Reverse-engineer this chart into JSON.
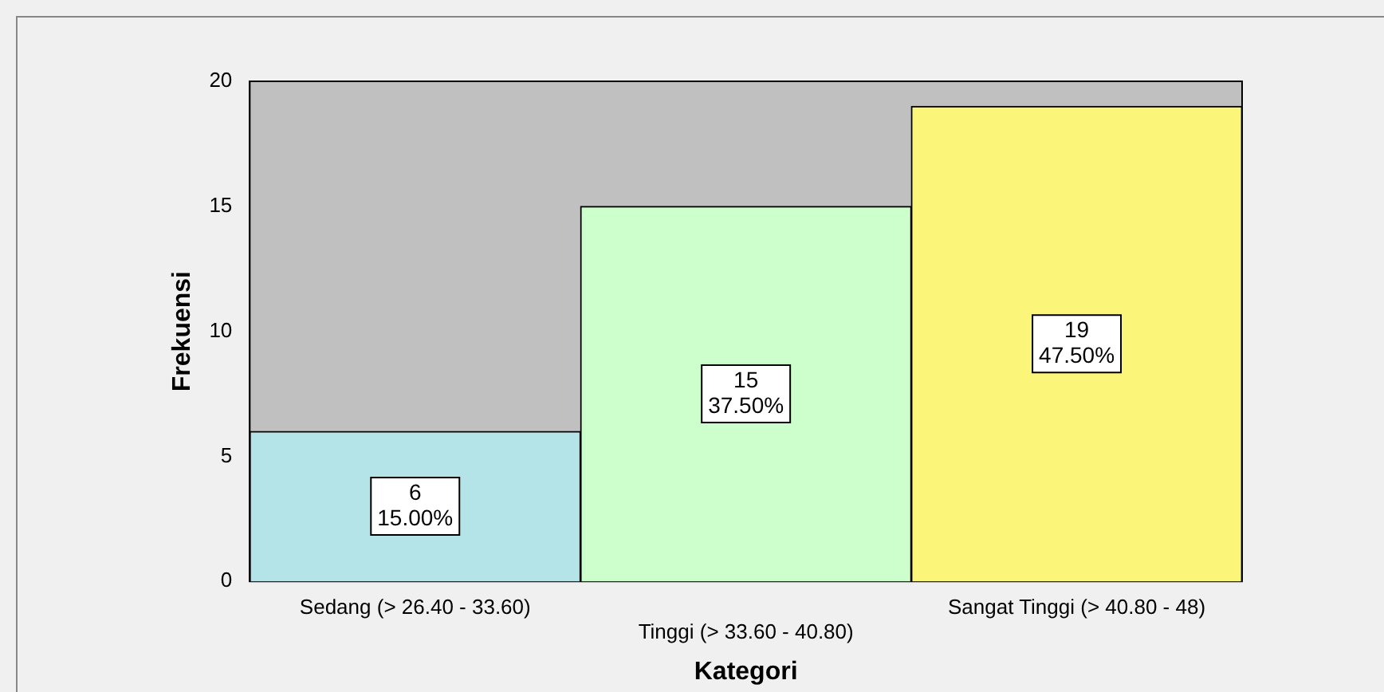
{
  "chart_data": {
    "type": "bar",
    "xlabel": "Kategori",
    "ylabel": "Frekuensi",
    "categories": [
      "Sedang (> 26.40 - 33.60)",
      "Tinggi (> 33.60 - 40.80)",
      "Sangat Tinggi (> 40.80 - 48)"
    ],
    "values": [
      6,
      15,
      19
    ],
    "colors": [
      "#b4e4e8",
      "#ccffcc",
      "#fbf67a"
    ],
    "value_labels": [
      "6\n15.00%",
      "15\n37.50%",
      "19\n47.50%"
    ],
    "ylim": [
      0,
      20
    ],
    "yticks": [
      0,
      5,
      10,
      15,
      20
    ],
    "grid": false,
    "legend": false
  }
}
